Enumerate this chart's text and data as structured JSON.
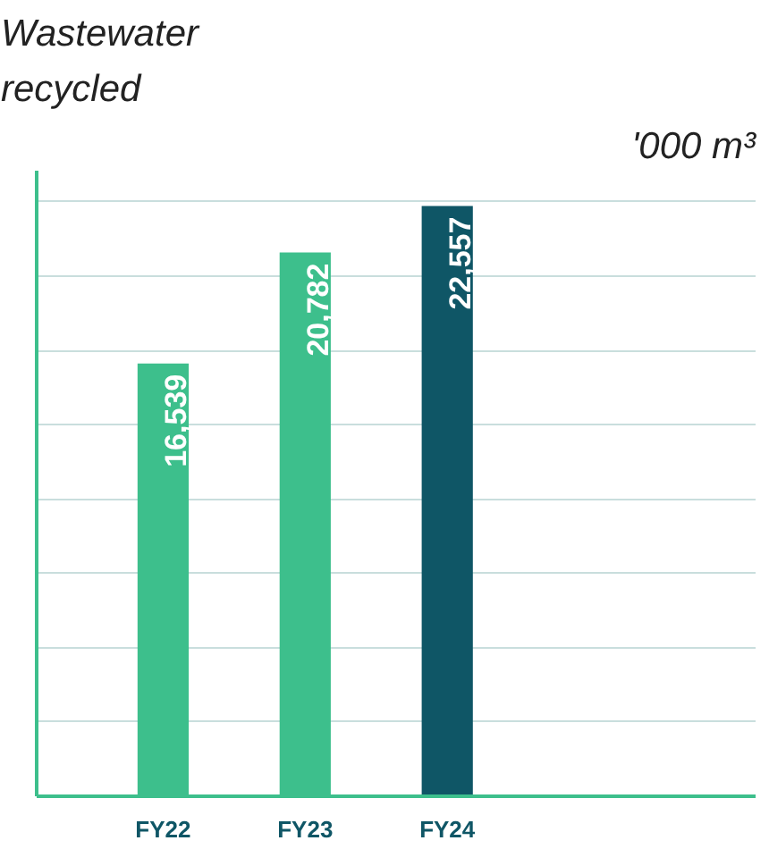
{
  "chart_data": {
    "type": "bar",
    "title": "Wastewater\nrecycled",
    "ylabel": "'000 m³",
    "categories": [
      "FY22",
      "FY23",
      "FY24"
    ],
    "values": [
      16539,
      20782,
      22557
    ],
    "colors": [
      "#3dbf8c",
      "#3dbf8c",
      "#0f5666"
    ],
    "value_labels": [
      "16,539",
      "20,782",
      "22,557"
    ],
    "yticks": [
      {
        "value": 2840,
        "label": null
      },
      {
        "value": 5680,
        "label": null
      },
      {
        "value": 8520,
        "label": null
      },
      {
        "value": 11360,
        "label": null
      },
      {
        "value": 14200,
        "label": null
      },
      {
        "value": 17040,
        "label": null
      },
      {
        "value": 19880,
        "label": null
      },
      {
        "value": 22720,
        "label": null
      }
    ],
    "grid": "y"
  }
}
